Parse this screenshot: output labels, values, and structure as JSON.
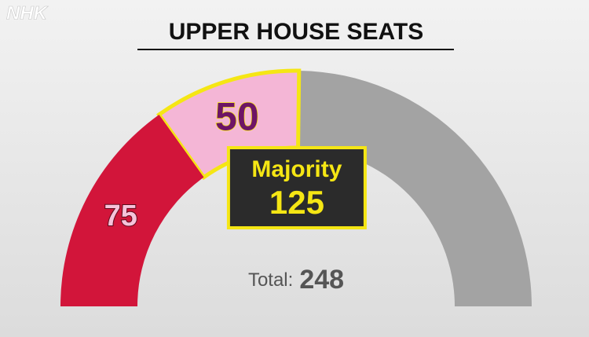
{
  "brand": "NHK",
  "chart_data": {
    "type": "half-donut",
    "title": "UPPER HOUSE SEATS",
    "values": [
      75,
      50,
      123
    ],
    "value_labels": [
      "75",
      "50",
      null
    ],
    "colors": [
      "#d2153a",
      "#f4b6d6",
      "#a3a3a3"
    ],
    "majority": {
      "label": "Majority",
      "value": 125
    },
    "total": {
      "label": "Total:",
      "value": 248
    }
  }
}
